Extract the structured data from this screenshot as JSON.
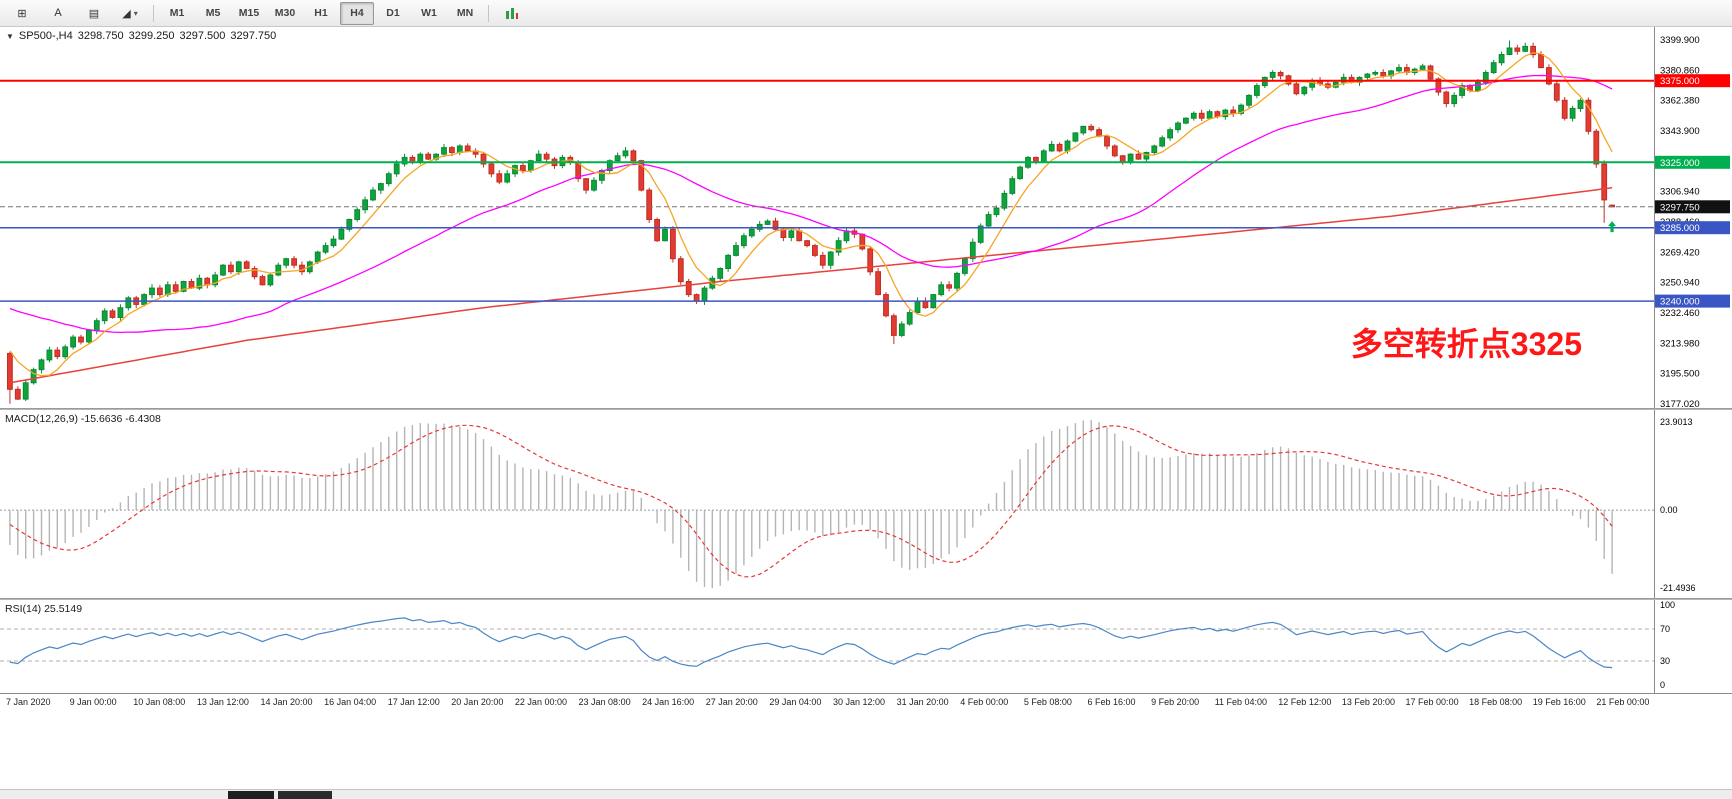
{
  "toolbar": {
    "tools": [
      {
        "name": "crosshair-tool",
        "glyph": "⊞"
      },
      {
        "name": "text-tool",
        "glyph": "A"
      },
      {
        "name": "label-tool",
        "glyph": "▤"
      },
      {
        "name": "arrow-tool",
        "glyph": "◢",
        "dropdown": true
      }
    ],
    "timeframes": [
      "M1",
      "M5",
      "M15",
      "M30",
      "H1",
      "H4",
      "D1",
      "W1",
      "MN"
    ],
    "active_timeframe": "H4"
  },
  "chart": {
    "symbol_header": {
      "symbol": "SP500-,H4",
      "open": "3298.750",
      "high": "3299.250",
      "low": "3297.500",
      "close": "3297.750"
    },
    "annotation": {
      "text": "多空转折点3325",
      "color": "#ff0000"
    }
  },
  "chart_data": {
    "type": "candlestick",
    "symbol": "SP500-",
    "timeframe": "H4",
    "price_range": {
      "top": 3399.9,
      "bottom": 3177.02
    },
    "price_axis_labels": [
      "3399.900",
      "3380.860",
      "3362.380",
      "3343.900",
      "3325.420",
      "3306.940",
      "3288.460",
      "3269.420",
      "3250.940",
      "3232.460",
      "3213.980",
      "3195.500",
      "3177.020"
    ],
    "levels": [
      {
        "price": 3375.0,
        "label": "3375.000",
        "color": "#ff0000",
        "width": 2
      },
      {
        "price": 3325.0,
        "label": "3325.000",
        "color": "#00b050",
        "width": 2
      },
      {
        "price": 3285.0,
        "label": "3285.000",
        "color": "#3a56c4",
        "width": 1.5
      },
      {
        "price": 3240.0,
        "label": "3240.000",
        "color": "#3a56c4",
        "width": 1.5
      }
    ],
    "current_price": {
      "value": 3297.75,
      "label": "3297.750",
      "line_color": "#777777",
      "badge_color": "#111111"
    },
    "up_color": "#0da43e",
    "up_stroke": "#0a8a33",
    "down_color": "#e23b31",
    "down_stroke": "#c22d24",
    "closes_pre": [
      3205,
      3212,
      3218,
      3224,
      3230,
      3226,
      3234,
      3240,
      3236,
      3244,
      3250,
      3246,
      3252,
      3258,
      3254,
      3260,
      3256,
      3250,
      3244,
      3248,
      3242,
      3236,
      3240,
      3234,
      3228,
      3232,
      3238,
      3244,
      3240,
      3236,
      3230,
      3234,
      3228,
      3222,
      3226,
      3220,
      3214,
      3218,
      3212,
      3208
    ],
    "closes": [
      3186,
      3180,
      3190,
      3198,
      3204,
      3210,
      3206,
      3212,
      3218,
      3215,
      3222,
      3228,
      3234,
      3230,
      3236,
      3242,
      3238,
      3244,
      3248,
      3244,
      3250,
      3246,
      3252,
      3248,
      3254,
      3250,
      3256,
      3262,
      3258,
      3264,
      3260,
      3255,
      3250,
      3256,
      3262,
      3266,
      3262,
      3258,
      3264,
      3270,
      3274,
      3278,
      3284,
      3290,
      3296,
      3302,
      3308,
      3312,
      3318,
      3324,
      3328,
      3325,
      3330,
      3327,
      3330,
      3334,
      3331,
      3335,
      3332,
      3330,
      3324,
      3318,
      3313,
      3318,
      3323,
      3320,
      3326,
      3330,
      3327,
      3323,
      3328,
      3325,
      3315,
      3308,
      3314,
      3320,
      3326,
      3329,
      3332,
      3326,
      3308,
      3290,
      3277,
      3284,
      3266,
      3252,
      3244,
      3240,
      3248,
      3254,
      3260,
      3268,
      3274,
      3280,
      3284,
      3287,
      3289,
      3284,
      3279,
      3283,
      3277,
      3274,
      3268,
      3262,
      3270,
      3277,
      3283,
      3281,
      3272,
      3258,
      3244,
      3231,
      3219,
      3226,
      3233,
      3240,
      3236,
      3244,
      3250,
      3248,
      3257,
      3266,
      3276,
      3286,
      3293,
      3297,
      3306,
      3315,
      3322,
      3328,
      3325,
      3332,
      3336,
      3332,
      3338,
      3343,
      3347,
      3345,
      3341,
      3335,
      3329,
      3325,
      3330,
      3327,
      3331,
      3335,
      3340,
      3345,
      3349,
      3352,
      3355,
      3352,
      3356,
      3353,
      3357,
      3355,
      3360,
      3366,
      3372,
      3377,
      3380,
      3378,
      3373,
      3367,
      3371,
      3375,
      3373,
      3371,
      3374,
      3377,
      3374,
      3377,
      3379,
      3380,
      3378,
      3381,
      3383,
      3380,
      3382,
      3384,
      3376,
      3368,
      3361,
      3366,
      3372,
      3369,
      3374,
      3380,
      3386,
      3391,
      3395,
      3393,
      3396,
      3391,
      3383,
      3373,
      3363,
      3352,
      3358,
      3363,
      3344,
      3324,
      3302,
      3297.75
    ],
    "last_candle": {
      "open": 3298.75,
      "high": 3299.25,
      "low": 3297.5,
      "close": 3297.75
    },
    "wick_overrides": [
      {
        "index": 0,
        "low": 3177.2
      },
      {
        "index": 112,
        "low": 3213.8
      },
      {
        "index": 190,
        "high": 3399.6
      },
      {
        "index": 192,
        "high": 3398.2
      },
      {
        "index": 202,
        "low": 3288.0
      }
    ],
    "ma_fast": {
      "period": 6,
      "color": "#f5a623"
    },
    "ma_mid": {
      "period": 34,
      "color": "#ff00ff"
    },
    "ma_slow": {
      "color": "#e8413c",
      "points": [
        [
          0,
          3190
        ],
        [
          30,
          3216
        ],
        [
          60,
          3236
        ],
        [
          90,
          3252
        ],
        [
          120,
          3266
        ],
        [
          150,
          3280
        ],
        [
          175,
          3292
        ],
        [
          204,
          3310
        ]
      ]
    },
    "arrow": {
      "price": 3289,
      "color": "#00b050"
    },
    "time_labels": [
      "7 Jan 2020",
      "9 Jan 00:00",
      "10 Jan 08:00",
      "13 Jan 12:00",
      "14 Jan 20:00",
      "16 Jan 04:00",
      "17 Jan 12:00",
      "20 Jan 20:00",
      "22 Jan 00:00",
      "23 Jan 08:00",
      "24 Jan 16:00",
      "27 Jan 20:00",
      "29 Jan 04:00",
      "30 Jan 12:00",
      "31 Jan 20:00",
      "4 Feb 00:00",
      "5 Feb 08:00",
      "6 Feb 16:00",
      "9 Feb 20:00",
      "11 Feb 04:00",
      "12 Feb 12:00",
      "13 Feb 20:00",
      "17 Feb 00:00",
      "18 Feb 08:00",
      "19 Feb 16:00",
      "21 Feb 00:00"
    ],
    "macd": {
      "header_text": "MACD(12,26,9) -15.6636 -6.4308",
      "fast": 12,
      "slow": 26,
      "signal": 9,
      "axis": {
        "top": "23.9013",
        "zero": "0.00",
        "bottom": "-21.4936"
      },
      "hist_color": "#b5b5b5",
      "signal_color": "#e53935"
    },
    "rsi": {
      "header_text": "RSI(14) 25.5149",
      "period": 14,
      "axis_labels": [
        "100",
        "70",
        "30",
        "0"
      ],
      "level_lines": [
        70,
        30
      ],
      "color": "#4a86c8"
    }
  }
}
